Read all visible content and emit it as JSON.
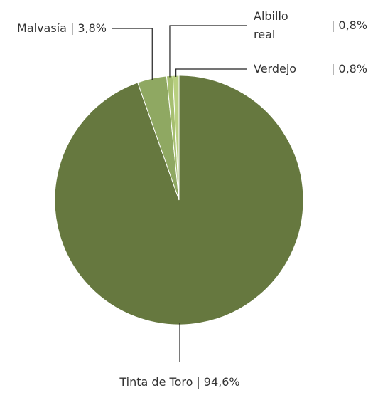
{
  "chart_data": {
    "type": "pie",
    "categories": [
      "Tinta de Toro",
      "Malvasía",
      "Albillo real",
      "Verdejo"
    ],
    "values": [
      94.6,
      3.8,
      0.8,
      0.8
    ],
    "value_labels": [
      "94,6%",
      "3,8%",
      "0,8%",
      "0,8%"
    ],
    "separator": "|",
    "colors": [
      "#66783f",
      "#8fa862",
      "#a6bf70",
      "#b8cf80"
    ]
  }
}
